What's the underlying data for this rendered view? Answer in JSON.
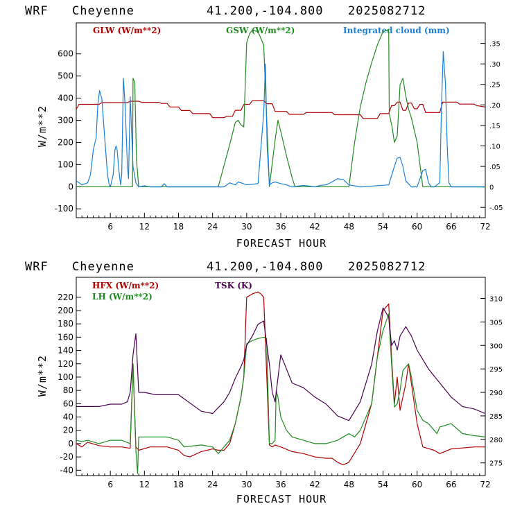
{
  "chart_data": [
    {
      "type": "line",
      "header": {
        "model": "WRF",
        "station": "Cheyenne",
        "coords": "41.200,-104.800",
        "run": "2025082712"
      },
      "xlabel": "FORECAST HOUR",
      "ylabel": "W/m**2",
      "xlim": [
        0,
        72
      ],
      "ylim": [
        -140,
        740
      ],
      "xticks": [
        6,
        12,
        18,
        24,
        30,
        36,
        42,
        48,
        54,
        60,
        66,
        72
      ],
      "yticks": [
        -100,
        0,
        100,
        200,
        300,
        400,
        500,
        600
      ],
      "y2lim": [
        -0.075,
        0.4
      ],
      "y2ticks": [
        -0.05,
        0,
        0.05,
        0.1,
        0.15,
        0.2,
        0.25,
        0.3,
        0.35
      ],
      "y2ticklabels": [
        "-.05",
        "0",
        ".05",
        ".10",
        ".15",
        ".20",
        ".25",
        ".30",
        ".35"
      ],
      "series": [
        {
          "name": "GLW (W/m**2)",
          "color": "#b00000",
          "axis": "left",
          "x": [
            0,
            0.5,
            4,
            4.5,
            9,
            9.5,
            11,
            11.5,
            14.5,
            15,
            16,
            16.5,
            18,
            18.5,
            20,
            20.5,
            23.5,
            24,
            26,
            26.5,
            27.5,
            28,
            29,
            29.5,
            30.5,
            31,
            33,
            33.5,
            34.5,
            35,
            37,
            37.5,
            40,
            40.5,
            45,
            45.5,
            50,
            50.5,
            53,
            53.5,
            55,
            55.5,
            56,
            56.5,
            57,
            57.5,
            58,
            58.5,
            59,
            59.5,
            60,
            60.5,
            61,
            61.5,
            64,
            64.5,
            67,
            67.5,
            70,
            70.5,
            72
          ],
          "y": [
            350,
            372,
            372,
            380,
            380,
            386,
            386,
            381,
            381,
            376,
            376,
            360,
            360,
            344,
            344,
            330,
            330,
            312,
            312,
            318,
            318,
            345,
            345,
            372,
            372,
            388,
            388,
            375,
            375,
            340,
            340,
            327,
            327,
            335,
            335,
            325,
            325,
            308,
            308,
            330,
            330,
            366,
            366,
            382,
            382,
            345,
            345,
            378,
            378,
            352,
            352,
            372,
            372,
            335,
            335,
            382,
            382,
            373,
            373,
            366,
            360
          ]
        },
        {
          "name": "GSW (W/m**2)",
          "color": "#208a20",
          "axis": "left",
          "x": [
            0,
            9.9,
            10,
            10.3,
            10.6,
            11,
            25,
            26,
            27,
            28,
            28.5,
            29,
            29.5,
            30,
            30.5,
            31,
            32,
            33,
            34,
            35,
            35.5,
            36,
            37,
            38,
            38.5,
            48,
            49,
            50,
            51,
            52,
            53,
            54,
            55,
            55.1,
            55.6,
            56,
            56.5,
            57,
            57.5,
            58,
            58.5,
            59,
            60,
            61,
            72
          ],
          "y": [
            0,
            0,
            490,
            470,
            120,
            0,
            0,
            95,
            190,
            290,
            300,
            280,
            270,
            650,
            690,
            708,
            700,
            640,
            0,
            210,
            300,
            250,
            140,
            40,
            0,
            0,
            200,
            360,
            470,
            560,
            640,
            700,
            710,
            330,
            270,
            200,
            230,
            460,
            490,
            410,
            350,
            310,
            200,
            0,
            0
          ]
        },
        {
          "name": "Integrated cloud (mm)",
          "color": "#1a7fd6",
          "axis": "right",
          "x": [
            0,
            1,
            2,
            2.5,
            3,
            3.5,
            3.8,
            4.1,
            4.5,
            5,
            5.5,
            5.8,
            6,
            6.5,
            6.8,
            7,
            7.2,
            7.5,
            7.8,
            8,
            8.3,
            8.6,
            9,
            9.2,
            9.5,
            10,
            10.5,
            11,
            12,
            13,
            15,
            15.5,
            16,
            18,
            24,
            26,
            26.5,
            27,
            28,
            28.5,
            29,
            30,
            32,
            33,
            33.3,
            33.6,
            34,
            34.5,
            35,
            35.5,
            36,
            37,
            38,
            40,
            42,
            43,
            44,
            45,
            46,
            47,
            48,
            50,
            55,
            56,
            56.5,
            57,
            57.5,
            58,
            59,
            60,
            61,
            61.5,
            62,
            62.5,
            63,
            64,
            64.3,
            64.6,
            65,
            65.3,
            65.6,
            66,
            72
          ],
          "y": [
            0.015,
            0.005,
            0.01,
            0.03,
            0.09,
            0.12,
            0.2,
            0.235,
            0.215,
            0.12,
            0.03,
            0.005,
            0,
            0.03,
            0.09,
            0.1,
            0.09,
            0.04,
            0.005,
            0.03,
            0.265,
            0.2,
            0.05,
            0.02,
            0.22,
            0.05,
            0.01,
            0,
            0.003,
            0,
            0,
            0.008,
            0,
            0,
            0,
            0,
            0.005,
            0.01,
            0.005,
            0.012,
            0.01,
            0.005,
            0.008,
            0.18,
            0.3,
            0.1,
            0.005,
            0.01,
            0.012,
            0.01,
            0.008,
            0.005,
            0,
            0.004,
            0,
            0.004,
            0.005,
            0.012,
            0.02,
            0.018,
            0.005,
            0,
            0.005,
            0.05,
            0.07,
            0.072,
            0.05,
            0.015,
            0,
            0,
            0.04,
            0.043,
            0.01,
            0,
            0,
            0.01,
            0.2,
            0.33,
            0.25,
            0.1,
            0.01,
            0,
            0
          ]
        }
      ]
    },
    {
      "type": "line",
      "header": {
        "model": "WRF",
        "station": "Cheyenne",
        "coords": "41.200,-104.800",
        "run": "2025082712"
      },
      "xlabel": "FORECAST HOUR",
      "ylabel": "W/m**2",
      "xlim": [
        0,
        72
      ],
      "ylim": [
        -48,
        250
      ],
      "xticks": [
        6,
        12,
        18,
        24,
        30,
        36,
        42,
        48,
        54,
        60,
        66,
        72
      ],
      "yticks": [
        -40,
        -20,
        0,
        20,
        40,
        60,
        80,
        100,
        120,
        140,
        160,
        180,
        200,
        220
      ],
      "y2lim": [
        272.3,
        314.5
      ],
      "y2ticks": [
        275,
        280,
        285,
        290,
        295,
        300,
        305,
        310
      ],
      "series": [
        {
          "name": "HFX (W/m**2)",
          "color": "#b00000",
          "axis": "left",
          "x": [
            0,
            1,
            2,
            4,
            6,
            8,
            9.5,
            10,
            10.5,
            11,
            13,
            16,
            18,
            19,
            20,
            22,
            24,
            25,
            26,
            27,
            28,
            29,
            29.5,
            30,
            31,
            32,
            32.5,
            33,
            34,
            34.5,
            35,
            36,
            38,
            40,
            42,
            44,
            45,
            46,
            47,
            48,
            50,
            52,
            53,
            54,
            55,
            55.5,
            56,
            56.5,
            57,
            58,
            58.5,
            59,
            60,
            61,
            63,
            64,
            66,
            70,
            72
          ],
          "y": [
            0,
            -5,
            2,
            -3,
            -5,
            -5,
            -7,
            120,
            -5,
            -10,
            -5,
            -5,
            -10,
            -18,
            -20,
            -12,
            -8,
            -10,
            -10,
            0,
            30,
            70,
            100,
            220,
            225,
            228,
            225,
            220,
            -2,
            -5,
            -2,
            -5,
            -12,
            -15,
            -20,
            -22,
            -22,
            -28,
            -32,
            -28,
            0,
            60,
            130,
            200,
            210,
            130,
            60,
            100,
            50,
            90,
            120,
            90,
            30,
            -5,
            -10,
            -15,
            -8,
            -5,
            -5
          ]
        },
        {
          "name": "LH (W/m**2)",
          "color": "#208a20",
          "axis": "left",
          "x": [
            0,
            1,
            2,
            4,
            6,
            8,
            9.5,
            10,
            10.5,
            10.8,
            11,
            12,
            14,
            16,
            18,
            19,
            22,
            24,
            25,
            26,
            27,
            28,
            29,
            29.5,
            30,
            31,
            32,
            33,
            33.5,
            34,
            34.5,
            35,
            35.2,
            35.5,
            36,
            37,
            38,
            40,
            42,
            44,
            46,
            47,
            48,
            49,
            50,
            52,
            53,
            54,
            55,
            55.5,
            56,
            56.5,
            57,
            57.5,
            58,
            58.5,
            59,
            60,
            61,
            62,
            63,
            63.5,
            64,
            66,
            68,
            70,
            72
          ],
          "y": [
            5,
            3,
            5,
            0,
            5,
            5,
            0,
            120,
            -10,
            -45,
            10,
            10,
            10,
            10,
            5,
            -5,
            -2,
            -5,
            -15,
            -5,
            5,
            30,
            70,
            100,
            150,
            155,
            158,
            160,
            158,
            0,
            0,
            5,
            80,
            70,
            40,
            20,
            10,
            5,
            0,
            0,
            5,
            10,
            15,
            10,
            20,
            60,
            130,
            170,
            195,
            120,
            55,
            60,
            80,
            110,
            115,
            120,
            100,
            50,
            35,
            30,
            20,
            15,
            25,
            30,
            15,
            12,
            10
          ]
        },
        {
          "name": "TSK (K)",
          "color": "#4a0050",
          "axis": "right",
          "x": [
            0,
            4,
            6,
            8,
            9,
            9.5,
            10,
            10.5,
            11,
            12,
            14,
            18,
            22,
            24,
            26,
            27,
            28,
            29,
            29.5,
            30,
            31,
            32,
            33,
            34,
            34.5,
            35,
            36,
            38,
            40,
            42,
            44,
            46,
            48,
            50,
            52,
            53,
            54,
            55,
            55.5,
            56,
            56.5,
            57,
            58,
            59,
            60,
            61,
            62,
            64,
            66,
            68,
            70,
            72
          ],
          "y": [
            287,
            287,
            287.5,
            287.5,
            288,
            290,
            298,
            302.5,
            290,
            290,
            289.5,
            289.5,
            286,
            285.5,
            288,
            290,
            293,
            295.5,
            297,
            300,
            302,
            304.5,
            305.2,
            296,
            290,
            288,
            298,
            292,
            291,
            289,
            287.5,
            285,
            284,
            288,
            296,
            303,
            308,
            306,
            300,
            301,
            299,
            302,
            304,
            302,
            299,
            297,
            295,
            292,
            289,
            287,
            286.5,
            285.5
          ]
        }
      ]
    }
  ]
}
